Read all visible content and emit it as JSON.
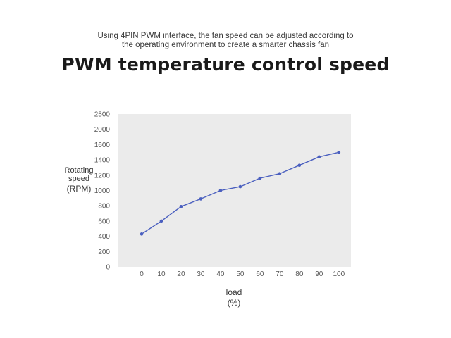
{
  "header": {
    "subtitle_line1": "Using 4PIN PWM interface, the fan speed can be adjusted according to",
    "subtitle_line2": "the operating environment to create a smarter chassis fan",
    "title": "PWM temperature control speed"
  },
  "axes": {
    "ylabel_line1": "Rotating",
    "ylabel_line2": "speed",
    "ylabel_line3": "(RPM)",
    "xlabel_line1": "load",
    "xlabel_line2": "(%)"
  },
  "chart_data": {
    "type": "line",
    "title": "PWM temperature control speed",
    "xlabel": "load (%)",
    "ylabel": "Rotating speed (RPM)",
    "x": [
      0,
      10,
      20,
      30,
      40,
      50,
      60,
      70,
      80,
      90,
      100
    ],
    "series": [
      {
        "values": [
          430,
          600,
          790,
          890,
          1000,
          1050,
          1160,
          1220,
          1330,
          1440,
          1500
        ],
        "color": "#4a5fbf"
      }
    ],
    "x_ticks": [
      "0",
      "10",
      "20",
      "30",
      "40",
      "50",
      "60",
      "70",
      "80",
      "90",
      "100"
    ],
    "y_ticks": [
      "0",
      "200",
      "400",
      "600",
      "800",
      "1000",
      "1200",
      "1400",
      "1600",
      "2000",
      "2500"
    ],
    "ylim": [
      0,
      2500
    ],
    "grid": false,
    "legend": "none",
    "plot_background": "#ebebeb"
  }
}
